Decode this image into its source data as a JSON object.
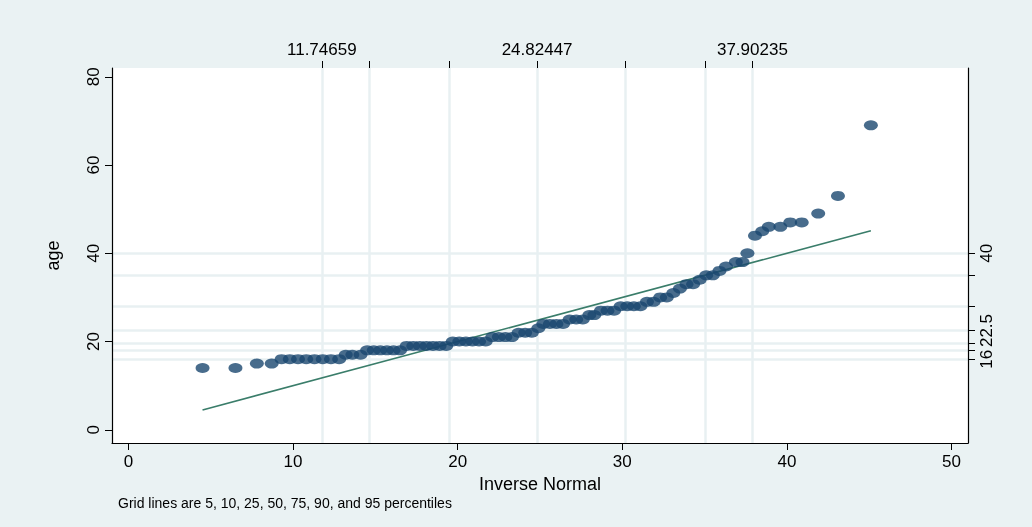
{
  "chart_data": {
    "type": "scatter",
    "xlabel": "Inverse Normal",
    "ylabel": "age",
    "annotations": [
      "Grid lines are 5, 10, 25, 50, 75, 90, and 95 percentiles"
    ],
    "xlim": [
      -1,
      51
    ],
    "xticks": [
      0,
      10,
      20,
      30,
      40,
      50
    ],
    "ylim": [
      -3,
      82
    ],
    "yticks": [
      0,
      20,
      40,
      60,
      80
    ],
    "x2lim": [
      -1,
      51
    ],
    "x2ticks": [
      {
        "value": 11.74659,
        "label": "11.74659"
      },
      {
        "value": 14.636,
        "label": null
      },
      {
        "value": 19.462,
        "label": null
      },
      {
        "value": 24.82447,
        "label": "24.82447"
      },
      {
        "value": 30.187,
        "label": null
      },
      {
        "value": 35.013,
        "label": null
      },
      {
        "value": 37.90235,
        "label": "37.90235"
      }
    ],
    "y2lim": [
      -3,
      82
    ],
    "y2ticks": [
      {
        "value": 16,
        "label": "16"
      },
      {
        "value": 18,
        "label": null
      },
      {
        "value": 19.5,
        "label": null
      },
      {
        "value": 22.5,
        "label": "22.5"
      },
      {
        "value": 28,
        "label": null
      },
      {
        "value": 35,
        "label": null
      },
      {
        "value": 40,
        "label": "40"
      }
    ],
    "grid": true,
    "series": [
      {
        "marker": "circle",
        "color": "#1a476f",
        "x": [
          4.5,
          6.5,
          7.8,
          8.7,
          9.3,
          9.8,
          10.3,
          10.8,
          11.3,
          11.8,
          12.3,
          12.8,
          13.2,
          13.6,
          14.1,
          14.5,
          14.9,
          15.3,
          15.7,
          16.1,
          16.5,
          16.9,
          17.3,
          17.7,
          18.1,
          18.5,
          18.9,
          19.3,
          19.7,
          20.1,
          20.5,
          20.9,
          21.3,
          21.7,
          22.1,
          22.5,
          22.9,
          23.3,
          23.7,
          24.1,
          24.5,
          24.9,
          25.2,
          25.6,
          26.0,
          26.4,
          26.8,
          27.2,
          27.6,
          28.0,
          28.3,
          28.7,
          29.1,
          29.5,
          29.9,
          30.3,
          30.7,
          31.1,
          31.5,
          31.9,
          32.3,
          32.7,
          33.1,
          33.5,
          33.9,
          34.3,
          34.7,
          35.1,
          35.5,
          35.9,
          36.3,
          36.9,
          37.3,
          37.6,
          38.06,
          38.5,
          38.9,
          39.6,
          40.2,
          40.9,
          41.9,
          43.1,
          45.1
        ],
        "values": [
          14,
          14,
          15,
          15,
          16,
          16,
          16,
          16,
          16,
          16,
          16,
          16,
          17,
          17,
          17,
          18,
          18,
          18,
          18,
          18,
          18,
          19,
          19,
          19,
          19,
          19,
          19,
          19,
          20,
          20,
          20,
          20,
          20,
          20,
          21,
          21,
          21,
          21,
          22,
          22,
          22,
          23,
          24,
          24,
          24,
          24,
          25,
          25,
          25,
          26,
          26,
          27,
          27,
          27,
          28,
          28,
          28,
          28,
          29,
          29,
          30,
          30,
          31,
          32,
          33,
          33,
          34,
          35,
          35,
          36,
          37,
          38,
          38,
          40,
          44,
          45,
          46,
          46,
          47,
          47,
          49,
          53,
          69
        ]
      },
      {
        "type": "line",
        "marker": "none",
        "line_style": "solid",
        "color": "#3a7d6a",
        "x": [
          4.5,
          45.1
        ],
        "values": [
          4.5,
          45.1
        ]
      }
    ]
  }
}
